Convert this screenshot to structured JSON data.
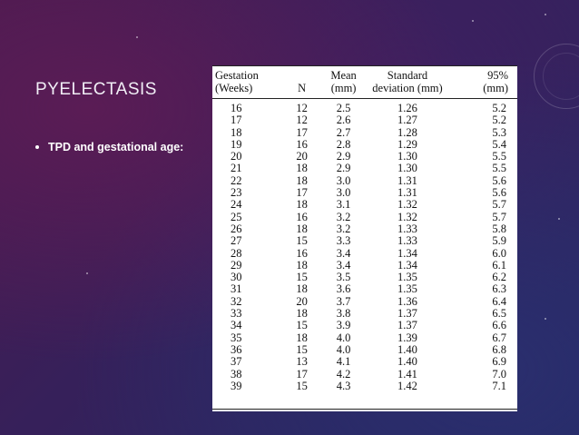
{
  "slide": {
    "title": "PYELECTASIS",
    "bullet": "TPD and gestational age:"
  },
  "table": {
    "headers": {
      "gestation": [
        "Gestation",
        "(Weeks)"
      ],
      "n": [
        "",
        "N"
      ],
      "mean": [
        "Mean",
        "(mm)"
      ],
      "sd": [
        "Standard",
        "deviation (mm)"
      ],
      "p95": [
        "95%",
        "(mm)"
      ]
    },
    "rows": [
      [
        "16",
        "12",
        "2.5",
        "1.26",
        "5.2"
      ],
      [
        "17",
        "12",
        "2.6",
        "1.27",
        "5.2"
      ],
      [
        "18",
        "17",
        "2.7",
        "1.28",
        "5.3"
      ],
      [
        "19",
        "16",
        "2.8",
        "1.29",
        "5.4"
      ],
      [
        "20",
        "20",
        "2.9",
        "1.30",
        "5.5"
      ],
      [
        "21",
        "18",
        "2.9",
        "1.30",
        "5.5"
      ],
      [
        "22",
        "18",
        "3.0",
        "1.31",
        "5.6"
      ],
      [
        "23",
        "17",
        "3.0",
        "1.31",
        "5.6"
      ],
      [
        "24",
        "18",
        "3.1",
        "1.32",
        "5.7"
      ],
      [
        "25",
        "16",
        "3.2",
        "1.32",
        "5.7"
      ],
      [
        "26",
        "18",
        "3.2",
        "1.33",
        "5.8"
      ],
      [
        "27",
        "15",
        "3.3",
        "1.33",
        "5.9"
      ],
      [
        "28",
        "16",
        "3.4",
        "1.34",
        "6.0"
      ],
      [
        "29",
        "18",
        "3.4",
        "1.34",
        "6.1"
      ],
      [
        "30",
        "15",
        "3.5",
        "1.35",
        "6.2"
      ],
      [
        "31",
        "18",
        "3.6",
        "1.35",
        "6.3"
      ],
      [
        "32",
        "20",
        "3.7",
        "1.36",
        "6.4"
      ],
      [
        "33",
        "18",
        "3.8",
        "1.37",
        "6.5"
      ],
      [
        "34",
        "15",
        "3.9",
        "1.37",
        "6.6"
      ],
      [
        "35",
        "18",
        "4.0",
        "1.39",
        "6.7"
      ],
      [
        "36",
        "15",
        "4.0",
        "1.40",
        "6.8"
      ],
      [
        "37",
        "13",
        "4.1",
        "1.40",
        "6.9"
      ],
      [
        "38",
        "17",
        "4.2",
        "1.41",
        "7.0"
      ],
      [
        "39",
        "15",
        "4.3",
        "1.42",
        "7.1"
      ]
    ]
  },
  "colors": {
    "text": "#ffffff",
    "table_bg": "#ffffff",
    "bg_purple": "#4a1a4f",
    "bg_blue": "#232a63"
  }
}
